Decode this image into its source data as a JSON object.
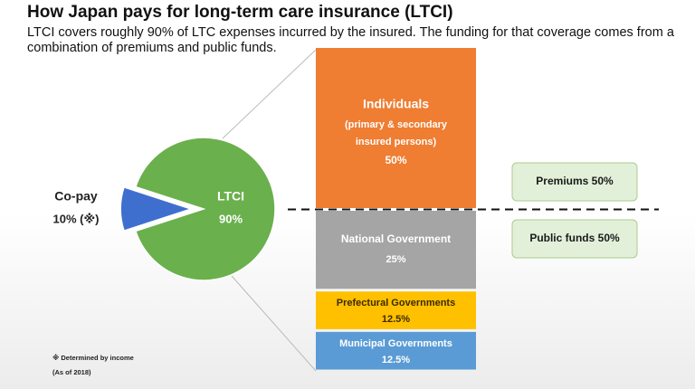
{
  "title": "How Japan pays for long-term care insurance (LTCI)",
  "subtitle": "LTCI covers roughly 90% of LTC expenses incurred by the insured. The funding for that coverage comes from a combination of premiums and public funds.",
  "footnotes": {
    "income_note": "※ Determined by income",
    "as_of": "(As of 2018)"
  },
  "colors": {
    "pie_ltci": "#6ab04c",
    "pie_copay": "#3f6fce",
    "individuals": "#ef7d32",
    "national": "#a5a5a5",
    "prefectural": "#ffc000",
    "municipal": "#5b9bd5",
    "label_box": "#e2f0d9",
    "label_box_border": "#a9cc8e"
  },
  "chart_data": [
    {
      "type": "pie",
      "slices": [
        {
          "label": "LTCI",
          "value": 90,
          "value_label": "90%"
        },
        {
          "label": "Co-pay",
          "value": 10,
          "value_label": "10% (※)"
        }
      ]
    },
    {
      "type": "bar",
      "stacked": true,
      "segments": [
        {
          "label": "Individuals",
          "sublabel_line1": "(primary & secondary",
          "sublabel_line2": "insured persons)",
          "value": 50,
          "value_label": "50%"
        },
        {
          "label": "National Government",
          "value": 25,
          "value_label": "25%"
        },
        {
          "label": "Prefectural Governments",
          "value": 12.5,
          "value_label": "12.5%"
        },
        {
          "label": "Municipal Governments",
          "value": 12.5,
          "value_label": "12.5%"
        }
      ],
      "annotations": [
        {
          "label": "Premiums 50%"
        },
        {
          "label": "Public funds 50%"
        }
      ]
    }
  ]
}
